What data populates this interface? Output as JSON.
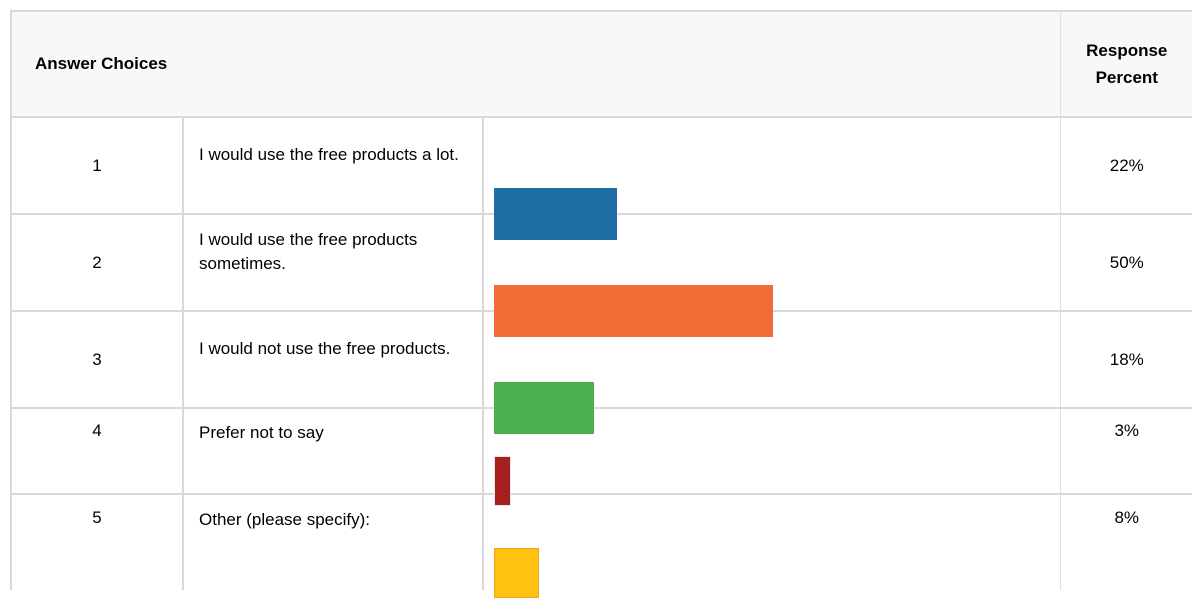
{
  "header": {
    "answer_choices": "Answer Choices",
    "response_percent_line1": "Response",
    "response_percent_line2": "Percent"
  },
  "chart_data": {
    "type": "bar",
    "orientation": "horizontal",
    "title": "",
    "xlabel": "",
    "ylabel": "",
    "xlim": [
      0,
      100
    ],
    "grid": false,
    "legend": "none",
    "categories": [
      "I would use the free products a lot.",
      "I would use the free products sometimes.",
      "I would not use the free products.",
      "Prefer not to say",
      "Other (please specify):"
    ],
    "rows": [
      {
        "num": "1",
        "label": "I would use the free products a lot.",
        "value": 22,
        "pct_label": "22%",
        "color": "#1f6fa6",
        "border": "#1f6fa6"
      },
      {
        "num": "2",
        "label": "I would use the free products sometimes.",
        "value": 50,
        "pct_label": "50%",
        "color": "#f26a35",
        "border": "#f26a35"
      },
      {
        "num": "3",
        "label": "I would not use the free products.",
        "value": 18,
        "pct_label": "18%",
        "color": "#4caf50",
        "border": "#4caf50"
      },
      {
        "num": "4",
        "label": "Prefer not to say",
        "value": 3,
        "pct_label": "3%",
        "color": "#a61f1f",
        "border": "#e8e8e8"
      },
      {
        "num": "5",
        "label": "Other (please specify):",
        "value": 8,
        "pct_label": "8%",
        "color": "#ffc20e",
        "border": "#f4a020"
      }
    ]
  }
}
